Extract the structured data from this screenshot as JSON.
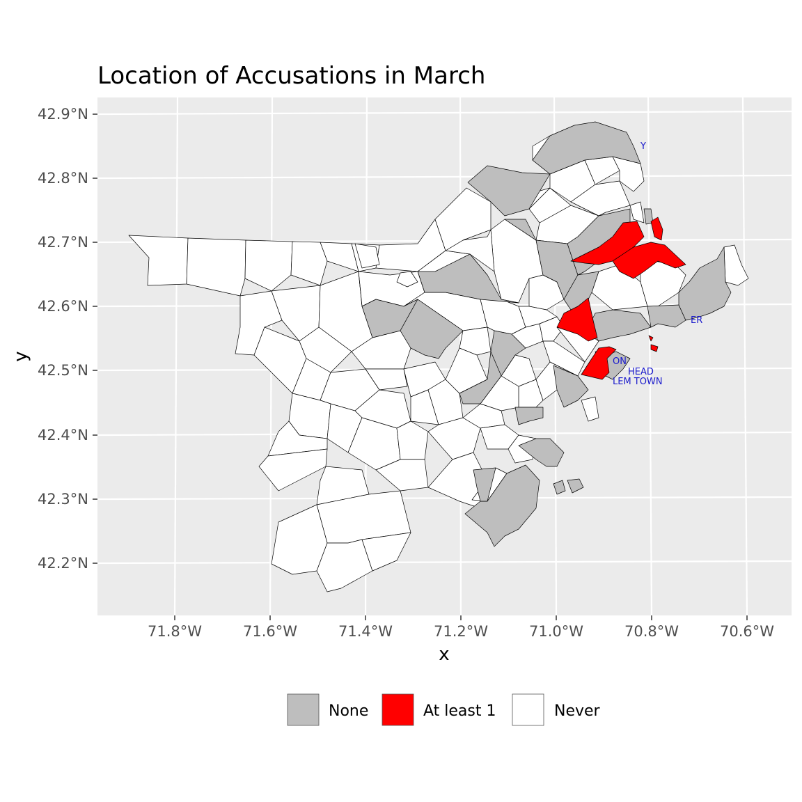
{
  "title": "Location of Accusations in March",
  "axes": {
    "x_label": "x",
    "y_label": "y",
    "x_ticks": [
      "71.8°W",
      "71.6°W",
      "71.4°W",
      "71.2°W",
      "71.0°W",
      "70.8°W",
      "70.6°W"
    ],
    "y_ticks": [
      "42.9°N",
      "42.8°N",
      "42.7°N",
      "42.6°N",
      "42.5°N",
      "42.4°N",
      "42.3°N",
      "42.2°N"
    ]
  },
  "legend": {
    "position": "bottom",
    "items": [
      {
        "label": "None",
        "color": "#bebebe"
      },
      {
        "label": "At least 1",
        "color": "#ff0000"
      },
      {
        "label": "Never",
        "color": "#ffffff"
      }
    ]
  },
  "place_labels": [
    "Y",
    "ER",
    "ON",
    "HEAD",
    "LEM TOWN"
  ],
  "colors": {
    "panel_bg": "#ebebeb",
    "grid": "#ffffff",
    "none": "#bebebe",
    "at_least_1": "#ff0000",
    "never": "#ffffff",
    "label_text": "#1a1acc"
  }
}
